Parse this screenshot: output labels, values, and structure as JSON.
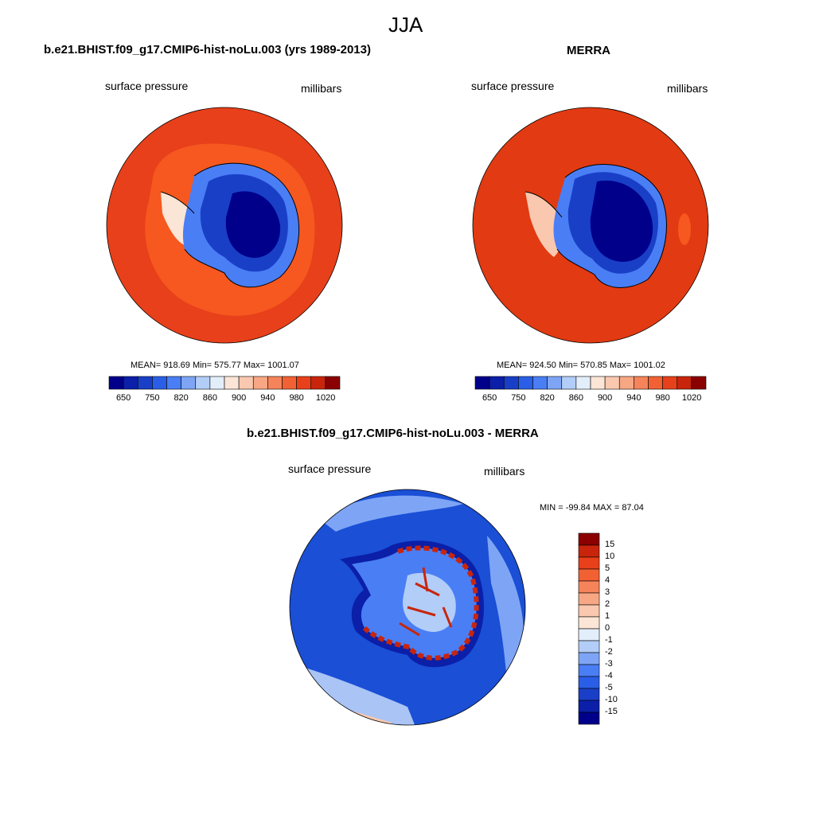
{
  "figure": {
    "season": "JJA"
  },
  "panels": [
    {
      "title": "b.e21.BHIST.f09_g17.CMIP6-hist-noLu.003 (yrs 1989-2013)",
      "variable": "surface pressure",
      "units": "millibars",
      "stats": "MEAN= 918.69  Min= 575.77  Max= 1001.07"
    },
    {
      "title": "MERRA",
      "variable": "surface pressure",
      "units": "millibars",
      "stats": "MEAN= 924.50  Min= 570.85  Max= 1001.02"
    },
    {
      "title": "b.e21.BHIST.f09_g17.CMIP6-hist-noLu.003 - MERRA",
      "variable": "surface pressure",
      "units": "millibars",
      "stats": "MIN = -99.84 MAX =  87.04"
    }
  ],
  "colorbar_abs": {
    "colors": [
      "#00008b",
      "#0b1fa8",
      "#1a3fc7",
      "#2a5ee6",
      "#4a7ef5",
      "#7ea5f5",
      "#b2cdf7",
      "#e3eefb",
      "#fbe5d6",
      "#f9c8ae",
      "#f7a784",
      "#f6845b",
      "#f26133",
      "#e8401a",
      "#c8250c",
      "#8b0000"
    ],
    "tick_labels": [
      "650",
      "750",
      "820",
      "860",
      "900",
      "940",
      "980",
      "1020"
    ]
  },
  "colorbar_diff": {
    "colors": [
      "#8b0000",
      "#c8250c",
      "#e8401a",
      "#f26133",
      "#f6845b",
      "#f7a784",
      "#f9c8ae",
      "#fbe5d6",
      "#e3eefb",
      "#b2cdf7",
      "#7ea5f5",
      "#4a7ef5",
      "#2a5ee6",
      "#1a3fc7",
      "#0b1fa8",
      "#00008b"
    ],
    "tick_labels": [
      "15",
      "10",
      "5",
      "4",
      "3",
      "2",
      "1",
      "0",
      "-1",
      "-2",
      "-3",
      "-4",
      "-5",
      "-10",
      "-15"
    ]
  },
  "colors": {
    "ocean_model": "#e8401a",
    "ocean_model_band": "#f6581f",
    "ocean_obs": "#e23a12",
    "ice_deep": "#00008b",
    "ice_mid": "#1a3fc7",
    "ice_edge": "#4a7ef5",
    "diff_ocean": "#1a4fd6",
    "diff_light": "#a9c4f5",
    "diff_warm": "#f9c8ae"
  }
}
